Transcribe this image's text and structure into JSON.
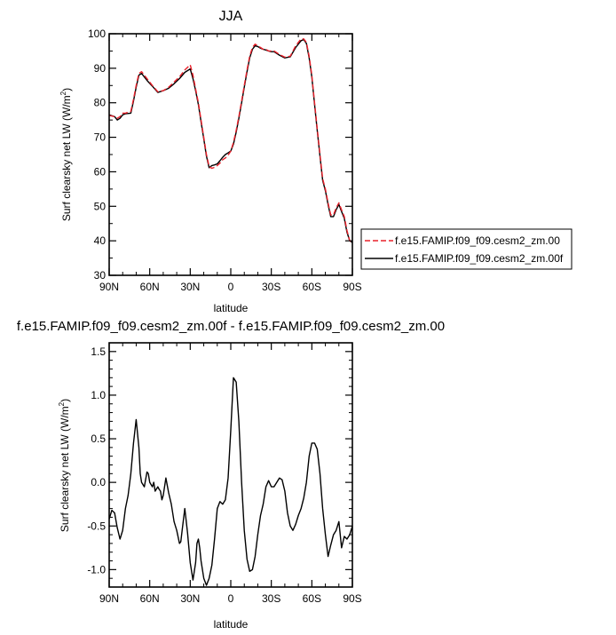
{
  "chart_data": [
    {
      "type": "line",
      "title": "JJA",
      "xlabel": "latitude",
      "ylabel_main": "Surf clearsky net LW (W/m",
      "ylabel_sup": "2",
      "ylabel_tail": ")",
      "xlim": [
        -90,
        90
      ],
      "ylim": [
        30,
        100
      ],
      "xticks": [
        -90,
        -60,
        -30,
        0,
        30,
        60,
        90
      ],
      "xtick_labels": [
        "90N",
        "60N",
        "30N",
        "0",
        "30S",
        "60S",
        "90S"
      ],
      "yticks": [
        30,
        40,
        50,
        60,
        70,
        80,
        90,
        100
      ],
      "ytick_labels": [
        "30",
        "40",
        "50",
        "60",
        "70",
        "80",
        "90",
        "100"
      ],
      "grid": false,
      "legend_position": "right",
      "colors": {
        "series_0": "#e8202a",
        "series_1": "#000000"
      },
      "series": [
        {
          "name": "f.e15.FAMIP.f09_f09.cesm2_zm.00",
          "style": "dashed",
          "x": [
            -90,
            -86,
            -84,
            -82,
            -80,
            -78,
            -74,
            -72,
            -70,
            -68,
            -66,
            -62,
            -58,
            -54,
            -50,
            -46,
            -42,
            -38,
            -34,
            -30,
            -28,
            -26,
            -24,
            -22,
            -20,
            -18,
            -16,
            -14,
            -12,
            -10,
            -8,
            -6,
            -4,
            -2,
            0,
            2,
            4,
            6,
            8,
            10,
            12,
            14,
            16,
            18,
            20,
            22,
            24,
            26,
            28,
            30,
            32,
            36,
            40,
            44,
            48,
            52,
            54,
            56,
            58,
            60,
            62,
            64,
            66,
            68,
            70,
            72,
            74,
            76,
            78,
            80,
            82,
            84,
            86,
            88,
            90
          ],
          "y": [
            76.3,
            76.0,
            75.5,
            76.0,
            77.0,
            77.0,
            77.5,
            81.0,
            85.0,
            88.5,
            89.0,
            87.0,
            85.0,
            83.2,
            83.5,
            84.5,
            86.0,
            87.5,
            89.5,
            91.0,
            88.0,
            84.0,
            80.0,
            75.0,
            70.0,
            65.0,
            61.5,
            61.0,
            61.3,
            61.8,
            62.5,
            63.5,
            64.0,
            64.8,
            66.0,
            68.5,
            72.0,
            76.0,
            80.5,
            85.0,
            89.5,
            93.5,
            96.0,
            97.0,
            96.5,
            96.0,
            95.5,
            95.5,
            95.0,
            95.0,
            95.0,
            94.0,
            93.2,
            93.5,
            96.5,
            98.5,
            98.5,
            97.5,
            93.5,
            88.0,
            80.0,
            72.5,
            65.0,
            58.0,
            55.0,
            51.0,
            47.5,
            47.5,
            49.5,
            51.0,
            49.0,
            47.0,
            43.0,
            40.0,
            39.5
          ]
        },
        {
          "name": "f.e15.FAMIP.f09_f09.cesm2_zm.00f",
          "style": "solid",
          "x": [
            -90,
            -86,
            -84,
            -82,
            -80,
            -78,
            -74,
            -72,
            -70,
            -68,
            -66,
            -62,
            -58,
            -54,
            -50,
            -46,
            -42,
            -38,
            -34,
            -30,
            -28,
            -26,
            -24,
            -22,
            -20,
            -18,
            -16,
            -14,
            -12,
            -10,
            -8,
            -6,
            -4,
            -2,
            0,
            2,
            4,
            6,
            8,
            10,
            12,
            14,
            16,
            18,
            20,
            22,
            24,
            26,
            28,
            30,
            32,
            36,
            40,
            44,
            48,
            52,
            54,
            56,
            58,
            60,
            62,
            64,
            66,
            68,
            70,
            72,
            74,
            76,
            78,
            80,
            82,
            84,
            86,
            88,
            90
          ],
          "y": [
            76.5,
            76.0,
            75.0,
            75.5,
            76.5,
            76.8,
            77.0,
            80.5,
            84.5,
            88.0,
            88.5,
            86.5,
            84.8,
            83.0,
            83.5,
            84.2,
            85.5,
            87.0,
            88.8,
            89.8,
            87.0,
            83.5,
            79.5,
            74.5,
            69.5,
            64.5,
            61.2,
            61.8,
            62.0,
            62.3,
            63.2,
            64.2,
            65.0,
            65.5,
            66.0,
            68.0,
            71.5,
            75.5,
            80.0,
            84.5,
            89.0,
            93.0,
            95.5,
            96.5,
            96.3,
            95.8,
            95.5,
            95.3,
            95.0,
            94.8,
            94.8,
            93.8,
            93.0,
            93.3,
            96.0,
            98.0,
            98.3,
            97.2,
            93.0,
            87.5,
            79.5,
            72.0,
            64.5,
            57.5,
            54.5,
            50.5,
            47.0,
            47.0,
            49.0,
            50.5,
            48.5,
            46.5,
            42.5,
            40.0,
            39.5
          ]
        }
      ]
    },
    {
      "type": "line",
      "title": "f.e15.FAMIP.f09_f09.cesm2_zm.00f - f.e15.FAMIP.f09_f09.cesm2_zm.00",
      "xlabel": "latitude",
      "ylabel_main": "Surf clearsky net LW (W/m",
      "ylabel_sup": "2",
      "ylabel_tail": ")",
      "xlim": [
        -90,
        90
      ],
      "ylim": [
        -1.2,
        1.6
      ],
      "xticks": [
        -90,
        -60,
        -30,
        0,
        30,
        60,
        90
      ],
      "xtick_labels": [
        "90N",
        "60N",
        "30N",
        "0",
        "30S",
        "60S",
        "90S"
      ],
      "yticks": [
        -1.0,
        -0.5,
        0.0,
        0.5,
        1.0,
        1.5
      ],
      "ytick_labels": [
        "-1.0",
        "-0.5",
        "0.0",
        "0.5",
        "1.0",
        "1.5"
      ],
      "grid": false,
      "colors": {
        "series_0": "#000000"
      },
      "series": [
        {
          "style": "solid",
          "x": [
            -90,
            -88,
            -86,
            -84,
            -82,
            -80,
            -78,
            -76,
            -74,
            -72,
            -70,
            -68,
            -67,
            -66,
            -64,
            -62,
            -61,
            -60,
            -58,
            -57,
            -56,
            -54,
            -53,
            -52,
            -51,
            -50,
            -48,
            -46,
            -44,
            -42,
            -40,
            -38,
            -37,
            -36,
            -34,
            -32,
            -30,
            -28,
            -26,
            -25,
            -24,
            -23,
            -22,
            -20,
            -18,
            -16,
            -14,
            -12,
            -10,
            -8,
            -6,
            -4,
            -2,
            0,
            2,
            4,
            6,
            8,
            10,
            12,
            14,
            16,
            18,
            20,
            22,
            24,
            26,
            28,
            30,
            32,
            34,
            36,
            38,
            40,
            42,
            44,
            46,
            48,
            50,
            52,
            54,
            56,
            58,
            60,
            62,
            64,
            66,
            68,
            70,
            72,
            74,
            76,
            78,
            80,
            82,
            84,
            86,
            88,
            90
          ],
          "y": [
            -0.42,
            -0.32,
            -0.35,
            -0.52,
            -0.65,
            -0.55,
            -0.3,
            -0.15,
            0.1,
            0.45,
            0.72,
            0.4,
            0.1,
            0.0,
            -0.05,
            0.12,
            0.1,
            0.0,
            -0.05,
            0.0,
            -0.1,
            -0.05,
            -0.08,
            -0.1,
            -0.2,
            -0.15,
            0.05,
            -0.12,
            -0.25,
            -0.45,
            -0.55,
            -0.7,
            -0.68,
            -0.55,
            -0.3,
            -0.58,
            -0.92,
            -1.12,
            -0.92,
            -0.7,
            -0.65,
            -0.75,
            -0.9,
            -1.1,
            -1.18,
            -1.1,
            -0.95,
            -0.65,
            -0.3,
            -0.22,
            -0.25,
            -0.2,
            0.05,
            0.6,
            1.2,
            1.15,
            0.7,
            0.0,
            -0.55,
            -0.88,
            -1.02,
            -1.0,
            -0.85,
            -0.6,
            -0.38,
            -0.25,
            -0.05,
            0.02,
            -0.05,
            -0.05,
            0.0,
            0.05,
            0.03,
            -0.1,
            -0.35,
            -0.5,
            -0.55,
            -0.48,
            -0.38,
            -0.3,
            -0.18,
            0.0,
            0.3,
            0.45,
            0.45,
            0.38,
            0.1,
            -0.3,
            -0.6,
            -0.85,
            -0.72,
            -0.6,
            -0.55,
            -0.45,
            -0.75,
            -0.62,
            -0.65,
            -0.6,
            -0.5
          ]
        }
      ]
    }
  ]
}
